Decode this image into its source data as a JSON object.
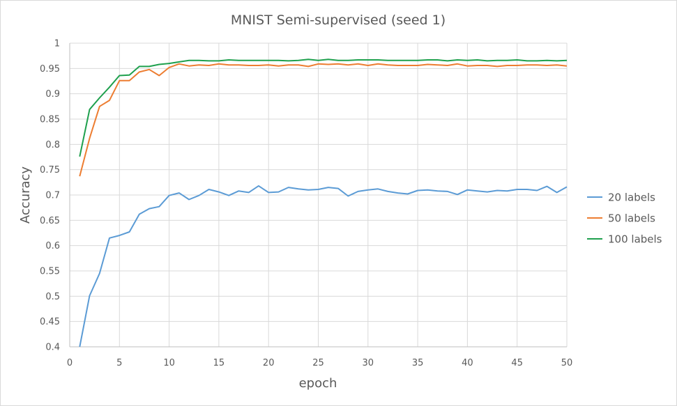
{
  "chart_data": {
    "type": "line",
    "title": "MNIST Semi-supervised (seed 1)",
    "xlabel": "epoch",
    "ylabel": "Accuracy",
    "xlim": [
      0,
      50
    ],
    "ylim": [
      0.4,
      1
    ],
    "xticks": [
      0,
      5,
      10,
      15,
      20,
      25,
      30,
      35,
      40,
      45,
      50
    ],
    "yticks": [
      0.4,
      0.45,
      0.5,
      0.55,
      0.6,
      0.65,
      0.7,
      0.75,
      0.8,
      0.85,
      0.9,
      0.95,
      1
    ],
    "grid": "vertical and horizontal major gridlines",
    "legend_position": "right",
    "x": [
      1,
      2,
      3,
      4,
      5,
      6,
      7,
      8,
      9,
      10,
      11,
      12,
      13,
      14,
      15,
      16,
      17,
      18,
      19,
      20,
      21,
      22,
      23,
      24,
      25,
      26,
      27,
      28,
      29,
      30,
      31,
      32,
      33,
      34,
      35,
      36,
      37,
      38,
      39,
      40,
      41,
      42,
      43,
      44,
      45,
      46,
      47,
      48,
      49,
      50
    ],
    "series": [
      {
        "name": "20 labels",
        "color": "#5b9bd5",
        "values": [
          0.4,
          0.501,
          0.545,
          0.615,
          0.62,
          0.627,
          0.662,
          0.673,
          0.677,
          0.699,
          0.704,
          0.691,
          0.699,
          0.711,
          0.706,
          0.699,
          0.708,
          0.705,
          0.718,
          0.705,
          0.706,
          0.715,
          0.712,
          0.71,
          0.711,
          0.715,
          0.713,
          0.698,
          0.707,
          0.71,
          0.712,
          0.707,
          0.704,
          0.702,
          0.709,
          0.71,
          0.708,
          0.707,
          0.701,
          0.71,
          0.708,
          0.706,
          0.709,
          0.708,
          0.711,
          0.711,
          0.709,
          0.717,
          0.705,
          0.716
        ]
      },
      {
        "name": "50 labels",
        "color": "#ed7d31",
        "values": [
          0.737,
          0.812,
          0.875,
          0.887,
          0.926,
          0.926,
          0.943,
          0.948,
          0.936,
          0.952,
          0.959,
          0.955,
          0.957,
          0.956,
          0.959,
          0.957,
          0.957,
          0.956,
          0.956,
          0.957,
          0.955,
          0.957,
          0.957,
          0.954,
          0.959,
          0.958,
          0.959,
          0.957,
          0.959,
          0.956,
          0.959,
          0.957,
          0.956,
          0.956,
          0.956,
          0.958,
          0.957,
          0.956,
          0.959,
          0.955,
          0.956,
          0.956,
          0.954,
          0.956,
          0.956,
          0.957,
          0.957,
          0.956,
          0.957,
          0.955
        ]
      },
      {
        "name": "100 labels",
        "color": "#1ea04d",
        "values": [
          0.776,
          0.869,
          0.892,
          0.913,
          0.936,
          0.937,
          0.954,
          0.954,
          0.958,
          0.96,
          0.963,
          0.966,
          0.966,
          0.965,
          0.965,
          0.967,
          0.966,
          0.966,
          0.966,
          0.966,
          0.966,
          0.965,
          0.966,
          0.968,
          0.966,
          0.968,
          0.966,
          0.966,
          0.967,
          0.967,
          0.967,
          0.966,
          0.966,
          0.966,
          0.966,
          0.967,
          0.967,
          0.965,
          0.967,
          0.966,
          0.967,
          0.965,
          0.966,
          0.966,
          0.967,
          0.965,
          0.965,
          0.966,
          0.965,
          0.966
        ]
      }
    ]
  }
}
